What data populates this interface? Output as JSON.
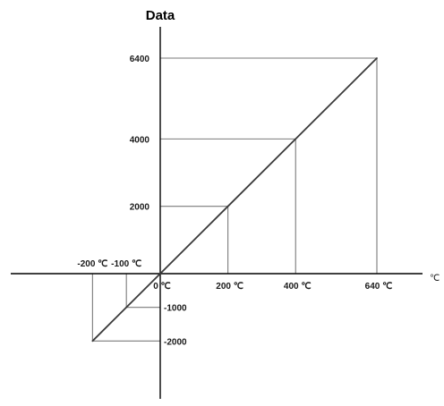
{
  "chart_data": {
    "type": "line",
    "ylabel": "Data",
    "xunit": "℃",
    "series": [
      {
        "x": [
          -200,
          -100,
          0,
          200,
          400,
          640
        ],
        "y": [
          -2000,
          -1000,
          0,
          2000,
          4000,
          6400
        ]
      }
    ],
    "xtick_labels": [
      {
        "x": -200,
        "label": "-200 ℃"
      },
      {
        "x": -100,
        "label": "-100 ℃"
      },
      {
        "x": 0,
        "label": "0 ℃"
      },
      {
        "x": 200,
        "label": "200 ℃"
      },
      {
        "x": 400,
        "label": "400 ℃"
      },
      {
        "x": 640,
        "label": "640 ℃"
      }
    ],
    "ytick_labels": [
      {
        "y": 6400,
        "label": "6400"
      },
      {
        "y": 4000,
        "label": "4000"
      },
      {
        "y": 2000,
        "label": "2000"
      },
      {
        "y": -1000,
        "label": "-1000"
      },
      {
        "y": -2000,
        "label": "-2000"
      }
    ],
    "reference_points": [
      {
        "x": 640,
        "y": 6400
      },
      {
        "x": 400,
        "y": 4000
      },
      {
        "x": 200,
        "y": 2000
      },
      {
        "x": -100,
        "y": -1000
      },
      {
        "x": -200,
        "y": -2000
      }
    ],
    "grid": false,
    "legend": "none"
  }
}
